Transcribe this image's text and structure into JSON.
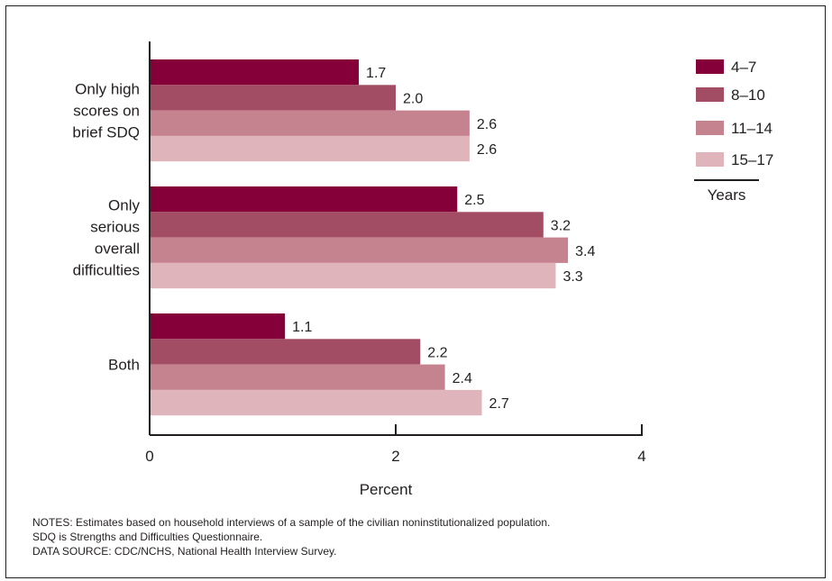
{
  "chart_data": {
    "type": "bar",
    "orientation": "horizontal",
    "categories": [
      [
        "Only high",
        "scores on",
        "brief SDQ"
      ],
      [
        "Only",
        "serious",
        "overall",
        "difficulties"
      ],
      [
        "Both"
      ]
    ],
    "series": [
      {
        "name": "4–7",
        "color": "#850038",
        "values": [
          1.7,
          2.5,
          1.1
        ],
        "labels": [
          "1.7",
          "2.5",
          "1.1"
        ]
      },
      {
        "name": "8–10",
        "color": "#a34d64",
        "values": [
          2.0,
          3.2,
          2.2
        ],
        "labels": [
          "2.0",
          "3.2",
          "2.2"
        ]
      },
      {
        "name": "11–14",
        "color": "#c4838f",
        "values": [
          2.6,
          3.4,
          2.4
        ],
        "labels": [
          "2.6",
          "3.4",
          "2.4"
        ]
      },
      {
        "name": "15–17",
        "color": "#dfb4bb",
        "values": [
          2.6,
          3.3,
          2.7
        ],
        "labels": [
          "2.6",
          "3.3",
          "2.7"
        ]
      }
    ],
    "xlabel": "Percent",
    "xlim": [
      0,
      4
    ],
    "xticks": [
      0,
      2,
      4
    ],
    "xtick_labels": [
      "0",
      "2",
      "4"
    ],
    "legend_title": "Years",
    "legend_position": "top-right",
    "grid": false
  },
  "notes": {
    "line1": "NOTES: Estimates based on household interviews of a sample of the civilian noninstitutionalized population.",
    "line2": "SDQ is Strengths and Difficulties Questionnaire.",
    "line3": "DATA SOURCE: CDC/NCHS, National Health Interview Survey."
  }
}
